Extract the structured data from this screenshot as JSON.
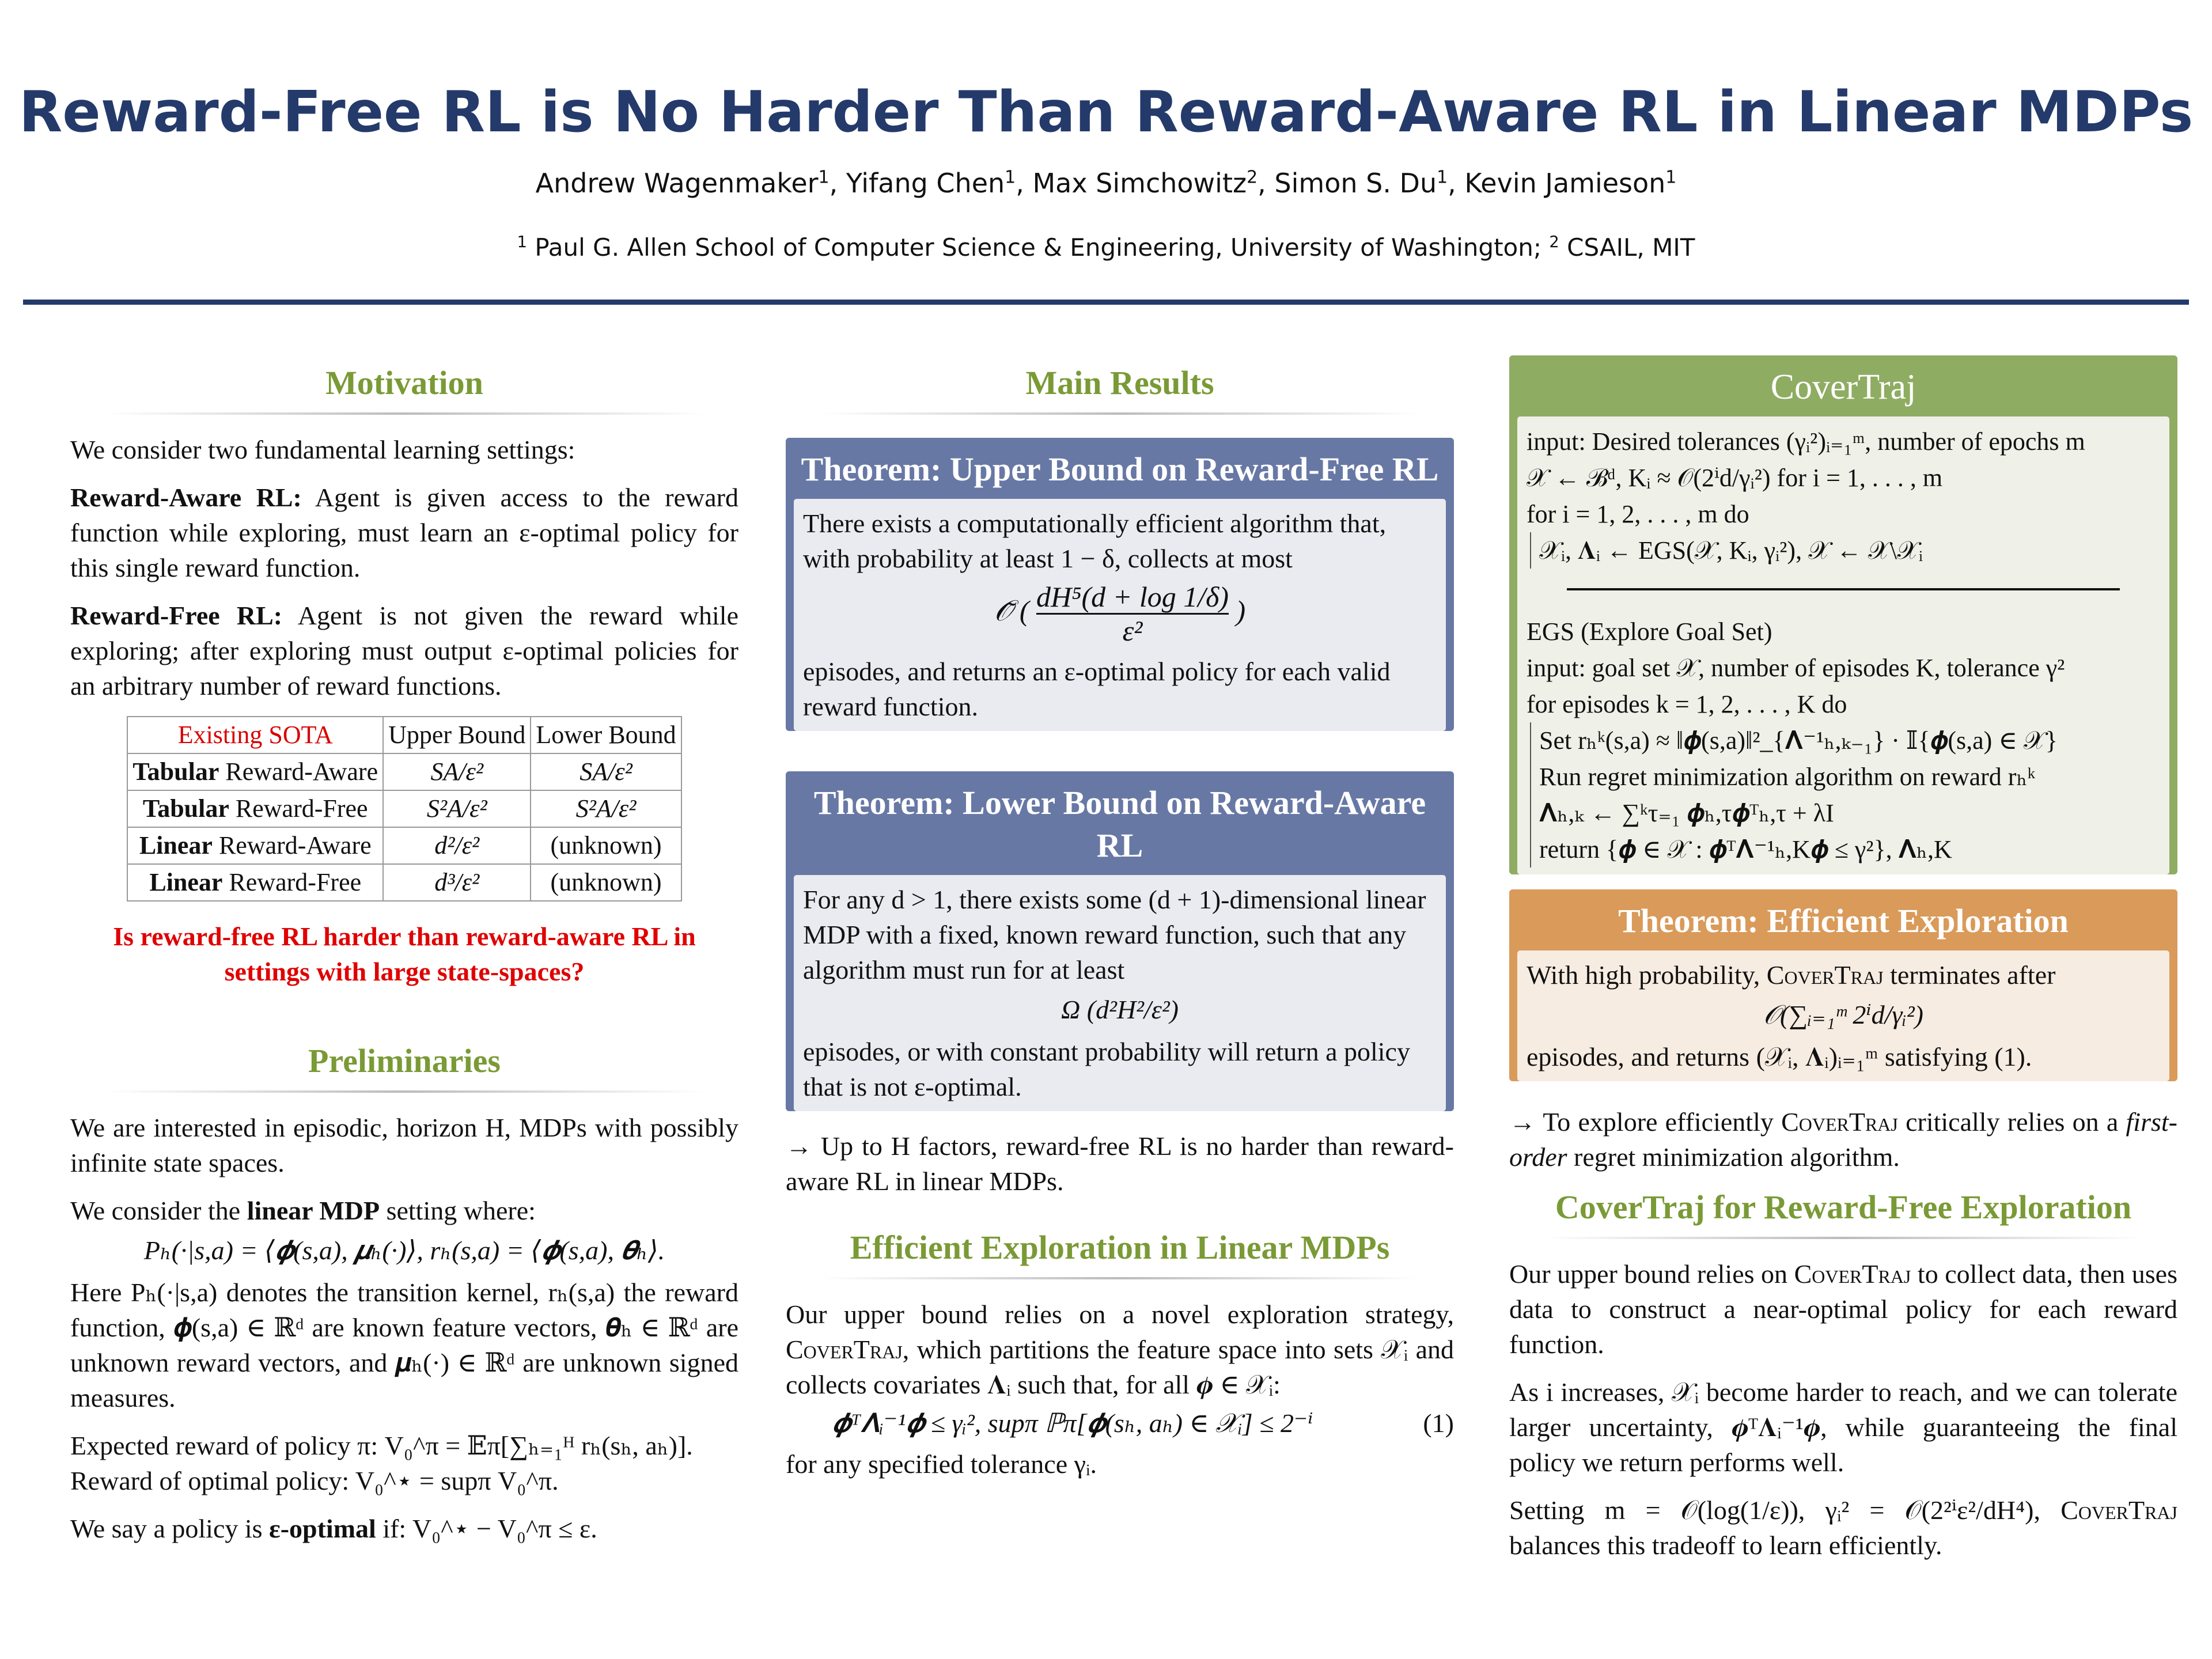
{
  "header": {
    "title": "Reward-Free RL is No Harder Than Reward-Aware RL in Linear MDPs",
    "authors": [
      {
        "name": "Andrew Wagenmaker",
        "aff": "1"
      },
      {
        "name": "Yifang Chen",
        "aff": "1"
      },
      {
        "name": "Max Simchowitz",
        "aff": "2"
      },
      {
        "name": "Simon S. Du",
        "aff": "1"
      },
      {
        "name": "Kevin Jamieson",
        "aff": "1"
      }
    ],
    "affiliations": [
      {
        "num": "1",
        "name": "Paul G. Allen School of Computer Science & Engineering, University of Washington;"
      },
      {
        "num": "2",
        "name": "CSAIL, MIT"
      }
    ]
  },
  "colors": {
    "title": "#243a6b",
    "section": "#7a9a36",
    "theorem_blue": "#6878a5",
    "algo_green": "#8fac63",
    "theorem_orange": "#d99a5a",
    "emphasis_red": "#e00000"
  },
  "motivation": {
    "heading": "Motivation",
    "intro": "We consider two fundamental learning settings:",
    "ra_label": "Reward-Aware RL:",
    "ra_text": " Agent is given access to the reward function while exploring, must learn an ε-optimal policy for this single reward function.",
    "rf_label": "Reward-Free RL:",
    "rf_text": " Agent is not given the reward while exploring; after exploring must output ε-optimal policies for an arbitrary number of reward functions.",
    "table": {
      "headers": [
        "Existing SOTA",
        "Upper Bound",
        "Lower Bound"
      ],
      "rows": [
        {
          "bold": "Tabular",
          "rest": " Reward-Aware",
          "upper": "SA/ε²",
          "lower": "SA/ε²"
        },
        {
          "bold": "Tabular",
          "rest": " Reward-Free",
          "upper": "S²A/ε²",
          "lower": "S²A/ε²"
        },
        {
          "bold": "Linear",
          "rest": " Reward-Aware",
          "upper": "d²/ε²",
          "lower": "(unknown)"
        },
        {
          "bold": "Linear",
          "rest": " Reward-Free",
          "upper": "d³/ε²",
          "lower": "(unknown)"
        }
      ]
    },
    "question": "Is reward-free RL harder than reward-aware RL in settings with large state-spaces?"
  },
  "preliminaries": {
    "heading": "Preliminaries",
    "p1": "We are interested in episodic, horizon H, MDPs with possibly infinite state spaces.",
    "p2_pre": "We consider the ",
    "p2_bold": "linear MDP",
    "p2_post": " setting where:",
    "eq": "Pₕ(·|s,a) = ⟨𝝓(s,a), 𝝁ₕ(·)⟩,    rₕ(s,a) = ⟨𝝓(s,a), 𝜽ₕ⟩.",
    "p3": "Here Pₕ(·|s,a) denotes the transition kernel, rₕ(s,a) the reward function, 𝝓(s,a) ∈ ℝᵈ are known feature vectors, 𝜽ₕ ∈ ℝᵈ are unknown reward vectors, and 𝝁ₕ(·) ∈ ℝᵈ are unknown signed measures.",
    "p4a": "Expected reward of policy π: V₀^π = 𝔼π[∑ₕ₌₁ᴴ rₕ(sₕ, aₕ)].",
    "p4b": "Reward of optimal policy: V₀^⋆ = supπ V₀^π.",
    "p5_pre": "We say a policy is ",
    "p5_bold": "ε-optimal",
    "p5_post": " if: V₀^⋆ − V₀^π ≤ ε."
  },
  "main": {
    "heading": "Main Results",
    "thm1": {
      "title": "Theorem: Upper Bound on Reward-Free RL",
      "body1": "There exists a computationally efficient algorithm that, with probability at least 1 − δ, collects at most",
      "op": "𝒪̃",
      "num": "dH⁵(d + log 1/δ)",
      "den": "ε²",
      "body2": "episodes, and returns an ε-optimal policy for each valid reward function."
    },
    "thm2": {
      "title": "Theorem: Lower Bound on Reward-Aware RL",
      "body1": "For any d > 1, there exists some (d + 1)-dimensional linear MDP with a fixed, known reward function, such that any algorithm must run for at least",
      "formula": "Ω (d²H²/ε²)",
      "body2": "episodes, or with constant probability will return a policy that is not ε-optimal."
    },
    "takeaway": "→ Up to H factors, reward-free RL is no harder than reward-aware RL in linear MDPs."
  },
  "exploration": {
    "heading": "Efficient Exploration in Linear MDPs",
    "pre": "Our upper bound relies on a novel exploration strategy, ",
    "sc": "CoverTraj",
    "post": ", which partitions the feature space into sets 𝒳ᵢ and collects covariates 𝚲ᵢ such that, for all 𝝓 ∈ 𝒳ᵢ:",
    "eq": "𝝓ᵀ𝚲ᵢ⁻¹𝝓 ≤ γᵢ²,    supπ ℙπ[𝝓(sₕ, aₕ) ∈ 𝒳ᵢ] ≤ 2⁻ⁱ",
    "eq_num": "(1)",
    "after": "for any specified tolerance γᵢ."
  },
  "covertraj": {
    "title": "CoverTraj",
    "lines": [
      "input: Desired tolerances (γᵢ²)ᵢ₌₁ᵐ, number of epochs m",
      "𝒳 ← ℬᵈ, Kᵢ ≈ 𝒪(2ⁱd/γᵢ²) for i = 1, . . . , m",
      "for i = 1, 2, . . . , m do",
      "𝒳ᵢ, 𝚲ᵢ ← EGS(𝒳, Kᵢ, γᵢ²), 𝒳 ← 𝒳\\𝒳ᵢ"
    ],
    "egs": [
      "EGS (Explore Goal Set)",
      "input: goal set 𝒳, number of episodes K, tolerance γ²",
      "for episodes k = 1, 2, . . . , K do",
      "Set rₕᵏ(s,a) ≈ ‖𝝓(s,a)‖²_{𝚲⁻¹ₕ,ₖ₋₁} · 𝕀{𝝓(s,a) ∈ 𝒳}",
      "Run regret minimization algorithm on reward rₕᵏ",
      "𝚲ₕ,ₖ ← ∑ᵏτ₌₁ 𝝓ₕ,τ𝝓ᵀₕ,τ + λI",
      "return {𝝓 ∈ 𝒳 : 𝝓ᵀ𝚲⁻¹ₕ,K𝝓 ≤ γ²}, 𝚲ₕ,K"
    ]
  },
  "thm3": {
    "title": "Theorem: Efficient Exploration",
    "pre": "With high probability, ",
    "sc": "CoverTraj",
    "post": " terminates after",
    "formula": "𝒪(∑ᵢ₌₁ᵐ 2ⁱd/γᵢ²)",
    "body2": "episodes, and returns (𝒳ᵢ, 𝚲ᵢ)ᵢ₌₁ᵐ satisfying (1)."
  },
  "right_note": {
    "pre": "→ To explore efficiently ",
    "sc": "CoverTraj",
    "mid": " critically relies on a ",
    "em": "first-order",
    "post": " regret minimization algorithm."
  },
  "rf_explore": {
    "heading": "CoverTraj for Reward-Free Exploration",
    "p1_pre": "Our upper bound relies on ",
    "p1_sc": "CoverTraj",
    "p1_post": " to collect data, then uses data to construct a near-optimal policy for each reward function.",
    "p2": "As i increases, 𝒳ᵢ become harder to reach, and we can tolerate larger uncertainty, 𝝓ᵀ𝚲ᵢ⁻¹𝝓, while guaranteeing the final policy we return performs well.",
    "p3_pre": "Setting m = 𝒪(log(1/ε)), γᵢ² = 𝒪(2²ⁱε²/dH⁴), ",
    "p3_sc": "CoverTraj",
    "p3_post": " balances this tradeoff to learn efficiently."
  }
}
